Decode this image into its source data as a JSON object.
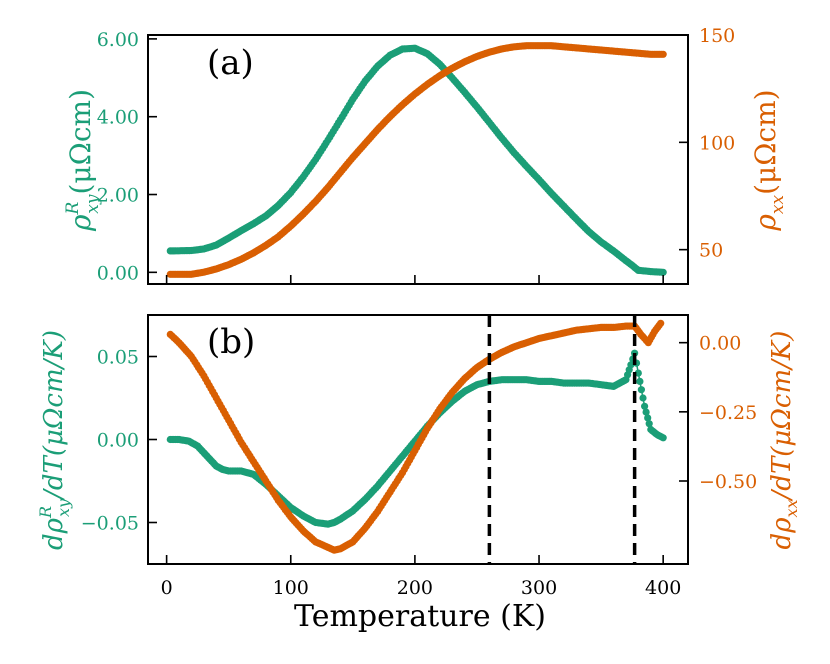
{
  "colors": {
    "green": "#1b9e77",
    "orange": "#d95f02",
    "axis": "#000000"
  },
  "chart_data": [
    {
      "type": "scatter",
      "panel_label": "(a)",
      "xlim": [
        -15,
        420
      ],
      "x_ticks": [
        0,
        100,
        200,
        300,
        400
      ],
      "left_axis": {
        "label_main": "ρ",
        "label_sup": "R",
        "label_sub": "xy",
        "label_unit": "(μΩcm)",
        "ylim": [
          -0.3,
          6.1
        ],
        "ticks": [
          0.0,
          2.0,
          4.0,
          6.0
        ],
        "tick_labels": [
          "0.00",
          "2.00",
          "4.00",
          "6.00"
        ]
      },
      "right_axis": {
        "label_main": "ρ",
        "label_sub": "xx",
        "label_unit": "(μΩcm)",
        "ylim": [
          34,
          150
        ],
        "ticks": [
          50,
          100,
          150
        ],
        "tick_labels": [
          "50",
          "100",
          "150"
        ]
      },
      "series": [
        {
          "name": "rho_xy_R",
          "axis": "left",
          "color": "#1b9e77",
          "x": [
            3,
            20,
            30,
            40,
            50,
            60,
            70,
            80,
            90,
            100,
            110,
            120,
            130,
            140,
            150,
            160,
            170,
            180,
            190,
            200,
            210,
            220,
            230,
            240,
            250,
            260,
            270,
            280,
            290,
            300,
            310,
            320,
            330,
            340,
            350,
            360,
            370,
            375,
            380,
            390,
            400
          ],
          "y": [
            0.55,
            0.56,
            0.6,
            0.7,
            0.88,
            1.07,
            1.25,
            1.45,
            1.72,
            2.05,
            2.45,
            2.9,
            3.4,
            3.92,
            4.45,
            4.92,
            5.3,
            5.58,
            5.74,
            5.76,
            5.62,
            5.35,
            5.0,
            4.63,
            4.25,
            3.85,
            3.45,
            3.07,
            2.72,
            2.38,
            2.03,
            1.7,
            1.37,
            1.05,
            0.78,
            0.55,
            0.3,
            0.18,
            0.05,
            0.02,
            0.0
          ]
        },
        {
          "name": "rho_xx",
          "axis": "right",
          "color": "#d95f02",
          "x": [
            3,
            20,
            30,
            40,
            50,
            60,
            70,
            80,
            90,
            100,
            110,
            120,
            130,
            140,
            150,
            160,
            170,
            180,
            190,
            200,
            210,
            220,
            230,
            240,
            250,
            260,
            270,
            280,
            290,
            300,
            310,
            320,
            330,
            340,
            350,
            360,
            370,
            380,
            390,
            400
          ],
          "y": [
            38.5,
            38.5,
            39.5,
            41,
            43,
            45.5,
            48.5,
            52,
            56,
            61,
            66.5,
            72.5,
            79,
            86,
            93,
            99.5,
            106,
            112,
            117.5,
            122.5,
            127,
            131,
            134.5,
            137.5,
            140,
            142,
            143.5,
            144.5,
            145,
            145,
            145,
            144.5,
            144,
            143.5,
            143,
            142.5,
            142,
            141.5,
            141,
            141
          ]
        }
      ]
    },
    {
      "type": "scatter",
      "panel_label": "(b)",
      "xlim": [
        -15,
        420
      ],
      "x_ticks": [
        0,
        100,
        200,
        300,
        400
      ],
      "x_tick_labels": [
        "0",
        "100",
        "200",
        "300",
        "400"
      ],
      "xlabel": "Temperature (K)",
      "vlines": [
        260,
        377
      ],
      "left_axis": {
        "label_pre": "dρ",
        "label_sup": "R",
        "label_sub": "xy",
        "label_post": "/dT(μΩcm/K)",
        "ylim": [
          -0.075,
          0.075
        ],
        "ticks": [
          -0.05,
          0.0,
          0.05
        ],
        "tick_labels": [
          "−0.05",
          "0.00",
          "0.05"
        ]
      },
      "right_axis": {
        "label_pre": "dρ",
        "label_sub": "xx",
        "label_post": "/dT(μΩcm/K)",
        "ylim": [
          -0.8,
          0.1
        ],
        "ticks": [
          -0.5,
          -0.25,
          0.0
        ],
        "tick_labels": [
          "−0.50",
          "−0.25",
          "0.00"
        ]
      },
      "series": [
        {
          "name": "d_rho_xy_R_dT",
          "axis": "left",
          "color": "#1b9e77",
          "x": [
            3,
            10,
            18,
            25,
            30,
            35,
            40,
            45,
            50,
            60,
            70,
            80,
            90,
            100,
            110,
            120,
            130,
            135,
            140,
            150,
            160,
            170,
            180,
            190,
            200,
            210,
            220,
            230,
            240,
            250,
            260,
            270,
            280,
            290,
            300,
            310,
            320,
            330,
            340,
            350,
            360,
            365,
            370,
            374,
            377,
            380,
            385,
            390,
            395,
            400
          ],
          "y": [
            0.0,
            0.0,
            -0.001,
            -0.004,
            -0.008,
            -0.012,
            -0.016,
            -0.018,
            -0.019,
            -0.019,
            -0.021,
            -0.027,
            -0.034,
            -0.041,
            -0.046,
            -0.05,
            -0.051,
            -0.05,
            -0.048,
            -0.043,
            -0.036,
            -0.028,
            -0.019,
            -0.01,
            -0.001,
            0.008,
            0.016,
            0.023,
            0.029,
            0.033,
            0.035,
            0.036,
            0.036,
            0.036,
            0.035,
            0.035,
            0.034,
            0.034,
            0.034,
            0.033,
            0.032,
            0.034,
            0.036,
            0.045,
            0.052,
            0.04,
            0.02,
            0.006,
            0.003,
            0.001
          ]
        },
        {
          "name": "d_rho_xx_dT",
          "axis": "right",
          "color": "#d95f02",
          "x": [
            3,
            10,
            20,
            30,
            40,
            50,
            60,
            70,
            80,
            90,
            100,
            110,
            120,
            130,
            135,
            140,
            150,
            160,
            170,
            180,
            190,
            200,
            210,
            220,
            230,
            240,
            250,
            260,
            270,
            280,
            290,
            300,
            310,
            320,
            330,
            340,
            350,
            360,
            370,
            377,
            382,
            388,
            393,
            398
          ],
          "y": [
            0.03,
            0.0,
            -0.05,
            -0.12,
            -0.2,
            -0.28,
            -0.36,
            -0.43,
            -0.5,
            -0.57,
            -0.63,
            -0.68,
            -0.72,
            -0.74,
            -0.75,
            -0.745,
            -0.72,
            -0.67,
            -0.61,
            -0.54,
            -0.47,
            -0.39,
            -0.31,
            -0.24,
            -0.18,
            -0.13,
            -0.09,
            -0.06,
            -0.035,
            -0.015,
            0.0,
            0.015,
            0.025,
            0.035,
            0.045,
            0.05,
            0.055,
            0.055,
            0.06,
            0.06,
            0.03,
            0.0,
            0.04,
            0.07
          ]
        }
      ]
    }
  ]
}
